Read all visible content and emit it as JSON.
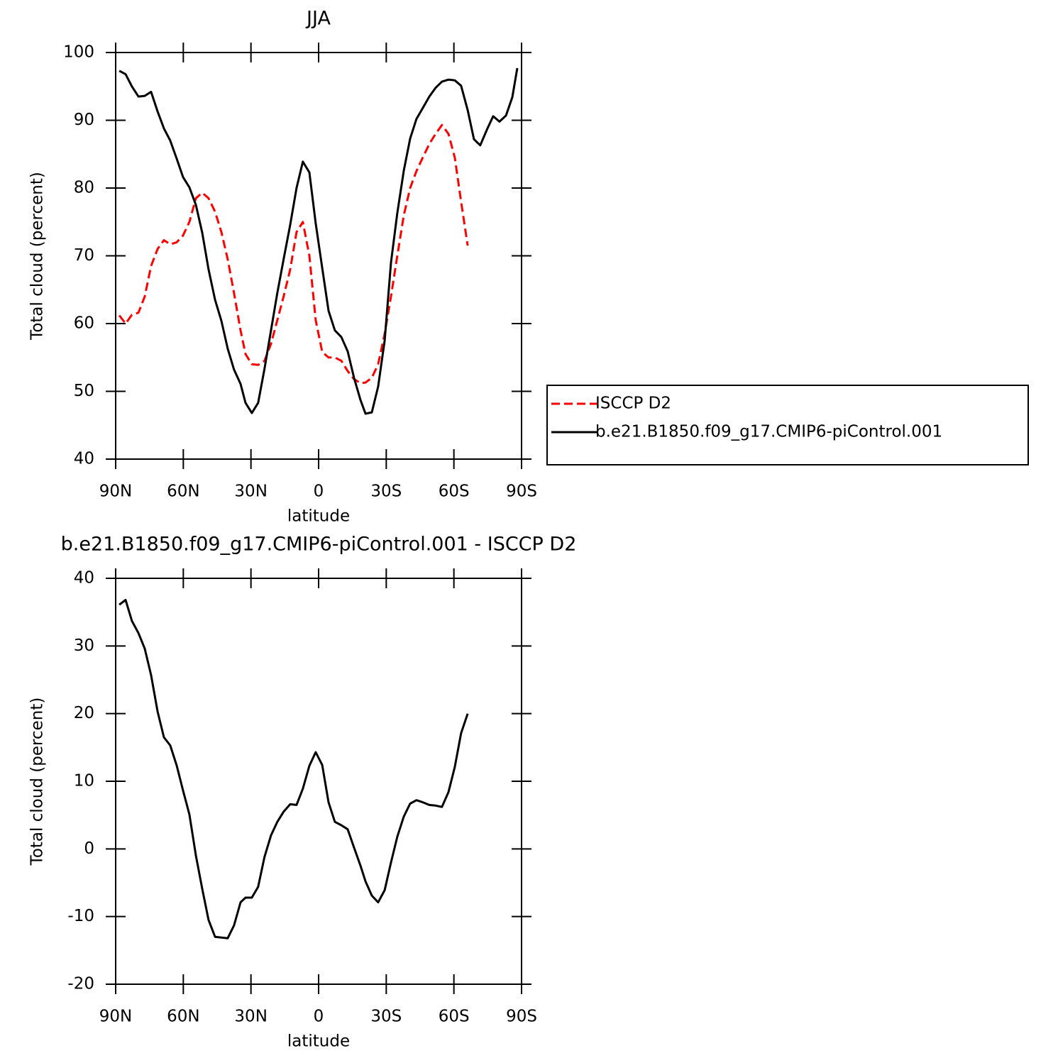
{
  "chart_data": [
    {
      "type": "line",
      "title": "JJA",
      "xlabel": "latitude",
      "ylabel": "Total cloud (percent)",
      "x": [
        88.4,
        85.6,
        82.8,
        79.9,
        77.1,
        74.3,
        71.4,
        68.6,
        65.8,
        62.9,
        60.1,
        57.3,
        54.4,
        51.6,
        48.8,
        45.9,
        43.1,
        40.3,
        37.5,
        34.6,
        32.4,
        29.6,
        26.8,
        24.0,
        21.1,
        18.3,
        15.5,
        12.6,
        9.8,
        7.0,
        4.1,
        1.3,
        -1.6,
        -4.4,
        -7.2,
        -10.1,
        -12.9,
        -15.7,
        -18.6,
        -20.8,
        -23.6,
        -26.4,
        -29.3,
        -32.1,
        -34.9,
        -37.8,
        -40.6,
        -43.4,
        -46.2,
        -49.1,
        -51.9,
        -54.7,
        -57.6,
        -60.4,
        -63.2,
        -66.1,
        -68.9,
        -71.7,
        -74.6,
        -77.4,
        -80.2,
        -83.1,
        -85.9,
        -88.1
      ],
      "series": [
        {
          "name": "ISCCP D2",
          "color": "#ff0000",
          "style": "dashed",
          "values": [
            61.2,
            60.0,
            61.3,
            61.6,
            64.0,
            68.5,
            71.0,
            72.3,
            71.7,
            72.0,
            73.0,
            75.0,
            78.5,
            79.3,
            78.5,
            76.5,
            73.5,
            69.5,
            64.5,
            59.0,
            55.5,
            54.0,
            53.9,
            54.5,
            57.0,
            60.5,
            64.0,
            68.0,
            73.5,
            75.0,
            70.0,
            60.5,
            55.8,
            55.0,
            55.0,
            54.5,
            53.0,
            51.8,
            51.2,
            51.3,
            52.0,
            54.0,
            58.5,
            64.0,
            70.0,
            76.0,
            80.0,
            82.5,
            84.5,
            86.5,
            88.0,
            89.3,
            88.0,
            84.5,
            78.0,
            71.5,
            null,
            null,
            null,
            null,
            null,
            null,
            null,
            null
          ]
        },
        {
          "name": "b.e21.B1850.f09_g17.CMIP6-piControl.001",
          "color": "#000000",
          "style": "solid",
          "values": [
            97.3,
            96.8,
            95.0,
            93.5,
            93.6,
            94.2,
            91.3,
            88.8,
            87.0,
            84.3,
            81.6,
            80.1,
            77.5,
            73.4,
            68.0,
            63.5,
            60.4,
            56.3,
            53.2,
            51.1,
            48.3,
            46.8,
            48.3,
            53.3,
            59.0,
            64.5,
            69.5,
            74.6,
            80.0,
            83.9,
            82.3,
            74.8,
            68.2,
            61.9,
            59.0,
            58.0,
            55.9,
            52.0,
            48.7,
            46.7,
            46.9,
            50.7,
            57.5,
            69.0,
            76.3,
            82.6,
            87.3,
            90.2,
            91.8,
            93.5,
            94.8,
            95.7,
            96.0,
            95.9,
            95.1,
            91.5,
            87.2,
            86.3,
            88.6,
            90.6,
            89.8,
            90.7,
            93.4,
            97.7
          ]
        }
      ],
      "xlim": [
        90,
        -90
      ],
      "xticks": [
        {
          "value": 90,
          "label": "90N"
        },
        {
          "value": 60,
          "label": "60N"
        },
        {
          "value": 30,
          "label": "30N"
        },
        0,
        {
          "value": -30,
          "label": "30S"
        },
        {
          "value": -60,
          "label": "60S"
        },
        {
          "value": -90,
          "label": "90S"
        }
      ],
      "ylim": [
        40,
        100
      ],
      "yticks": [
        40,
        50,
        60,
        70,
        80,
        90,
        100
      ],
      "legend": "right"
    },
    {
      "type": "line",
      "title": "b.e21.B1850.f09_g17.CMIP6-piControl.001 - ISCCP D2",
      "xlabel": "latitude",
      "ylabel": "Total cloud (percent)",
      "x": [
        88.4,
        85.6,
        82.8,
        79.9,
        77.1,
        74.3,
        71.4,
        68.6,
        65.8,
        62.9,
        60.1,
        57.3,
        54.4,
        51.6,
        48.8,
        45.9,
        43.1,
        40.3,
        37.5,
        34.6,
        32.4,
        29.6,
        26.8,
        24.0,
        21.1,
        18.3,
        15.5,
        12.6,
        9.8,
        7.0,
        4.1,
        1.3,
        -1.6,
        -4.4,
        -7.2,
        -10.1,
        -12.9,
        -15.7,
        -18.6,
        -20.8,
        -23.6,
        -26.4,
        -29.3,
        -32.1,
        -34.9,
        -37.8,
        -40.6,
        -43.4,
        -46.2,
        -49.1,
        -51.9,
        -54.7,
        -57.6,
        -60.4,
        -63.2,
        -66.1
      ],
      "series": [
        {
          "color": "#000000",
          "style": "solid",
          "values": [
            36.1,
            36.8,
            33.7,
            31.9,
            29.6,
            25.7,
            20.3,
            16.5,
            15.3,
            12.3,
            8.6,
            5.1,
            -1.0,
            -5.9,
            -10.5,
            -13.0,
            -13.1,
            -13.2,
            -11.3,
            -7.9,
            -7.2,
            -7.2,
            -5.6,
            -1.2,
            2.0,
            4.0,
            5.5,
            6.6,
            6.5,
            8.9,
            12.3,
            14.3,
            12.4,
            6.9,
            4.0,
            3.5,
            2.9,
            0.2,
            -2.5,
            -4.8,
            -6.9,
            -7.9,
            -6.1,
            -2.0,
            1.8,
            4.8,
            6.7,
            7.2,
            6.9,
            6.5,
            6.4,
            6.2,
            8.4,
            12.1,
            17.1,
            20.0
          ]
        }
      ],
      "xlim": [
        90,
        -90
      ],
      "xticks": [
        {
          "value": 90,
          "label": "90N"
        },
        {
          "value": 60,
          "label": "60N"
        },
        {
          "value": 30,
          "label": "30N"
        },
        0,
        {
          "value": -30,
          "label": "30S"
        },
        {
          "value": -60,
          "label": "60S"
        },
        {
          "value": -90,
          "label": "90S"
        }
      ],
      "ylim": [
        -20,
        40
      ],
      "yticks": [
        -20,
        -10,
        0,
        10,
        20,
        30,
        40
      ]
    }
  ]
}
